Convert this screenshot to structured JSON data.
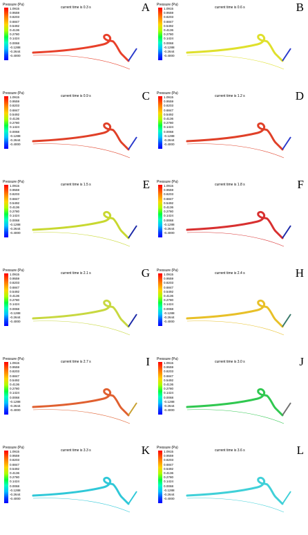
{
  "legend_title": "Pressure (Pa)",
  "scale_ticks": [
    "1.0915",
    "0.9559",
    "0.8203",
    "0.6847",
    "0.5492",
    "0.4136",
    "0.2780",
    "0.1424",
    "0.0068",
    "-0.1288",
    "-0.2644",
    "-0.4000"
  ],
  "panels": [
    {
      "letter": "A",
      "title": "current time is 0.3 s",
      "pipe_color": "#e8402a",
      "rod_color": "#2a3acc"
    },
    {
      "letter": "B",
      "title": "current time is 0.6 s",
      "pipe_color": "#dfe02c",
      "rod_color": "#2a3acc"
    },
    {
      "letter": "C",
      "title": "current time is 0.9 s",
      "pipe_color": "#e04028",
      "rod_color": "#2a3acc"
    },
    {
      "letter": "D",
      "title": "current time is 1.2 s",
      "pipe_color": "#e04028",
      "rod_color": "#2a3acc"
    },
    {
      "letter": "E",
      "title": "current time is 1.5 s",
      "pipe_color": "#c8d830",
      "rod_color": "#1c2aa8"
    },
    {
      "letter": "F",
      "title": "current time is 1.8 s",
      "pipe_color": "#d83030",
      "rod_color": "#1c2aa8"
    },
    {
      "letter": "G",
      "title": "current time is 2.1 s",
      "pipe_color": "#c8d840",
      "rod_color": "#1c2aa8"
    },
    {
      "letter": "H",
      "title": "current time is 2.4 s",
      "pipe_color": "#e8c028",
      "rod_color": "#3a7a6a"
    },
    {
      "letter": "I",
      "title": "current time is 2.7 s",
      "pipe_color": "#e06030",
      "rod_color": "#c8a030"
    },
    {
      "letter": "J",
      "title": "current time is 3.0 s",
      "pipe_color": "#30c850",
      "rod_color": "#707070"
    },
    {
      "letter": "K",
      "title": "current time is 3.3 s",
      "pipe_color": "#30c8d8",
      "rod_color": "#30c8d8"
    },
    {
      "letter": "L",
      "title": "current time is 3.6 s",
      "pipe_color": "#40d0d8",
      "rod_color": "#40d0d8"
    }
  ]
}
